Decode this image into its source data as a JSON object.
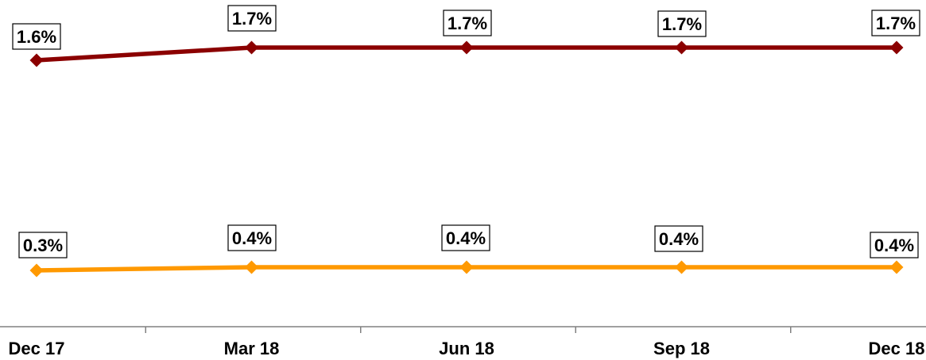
{
  "chart_data": {
    "type": "line",
    "categories": [
      "Dec 17",
      "Mar 18",
      "Jun 18",
      "Sep 18",
      "Dec 18"
    ],
    "series": [
      {
        "values": [
          1.6,
          1.7,
          1.7,
          1.7,
          1.7
        ],
        "labels": [
          "1.6%",
          "1.7%",
          "1.7%",
          "1.7%",
          "1.7%"
        ],
        "color": "#8B0000"
      },
      {
        "values": [
          0.3,
          0.4,
          0.4,
          0.4,
          0.4
        ],
        "labels": [
          "0.3%",
          "0.4%",
          "0.4%",
          "0.4%",
          "0.4%"
        ],
        "color": "#FF9900"
      }
    ],
    "title": "",
    "xlabel": "",
    "ylabel": "",
    "grid": false,
    "legend": "none"
  }
}
